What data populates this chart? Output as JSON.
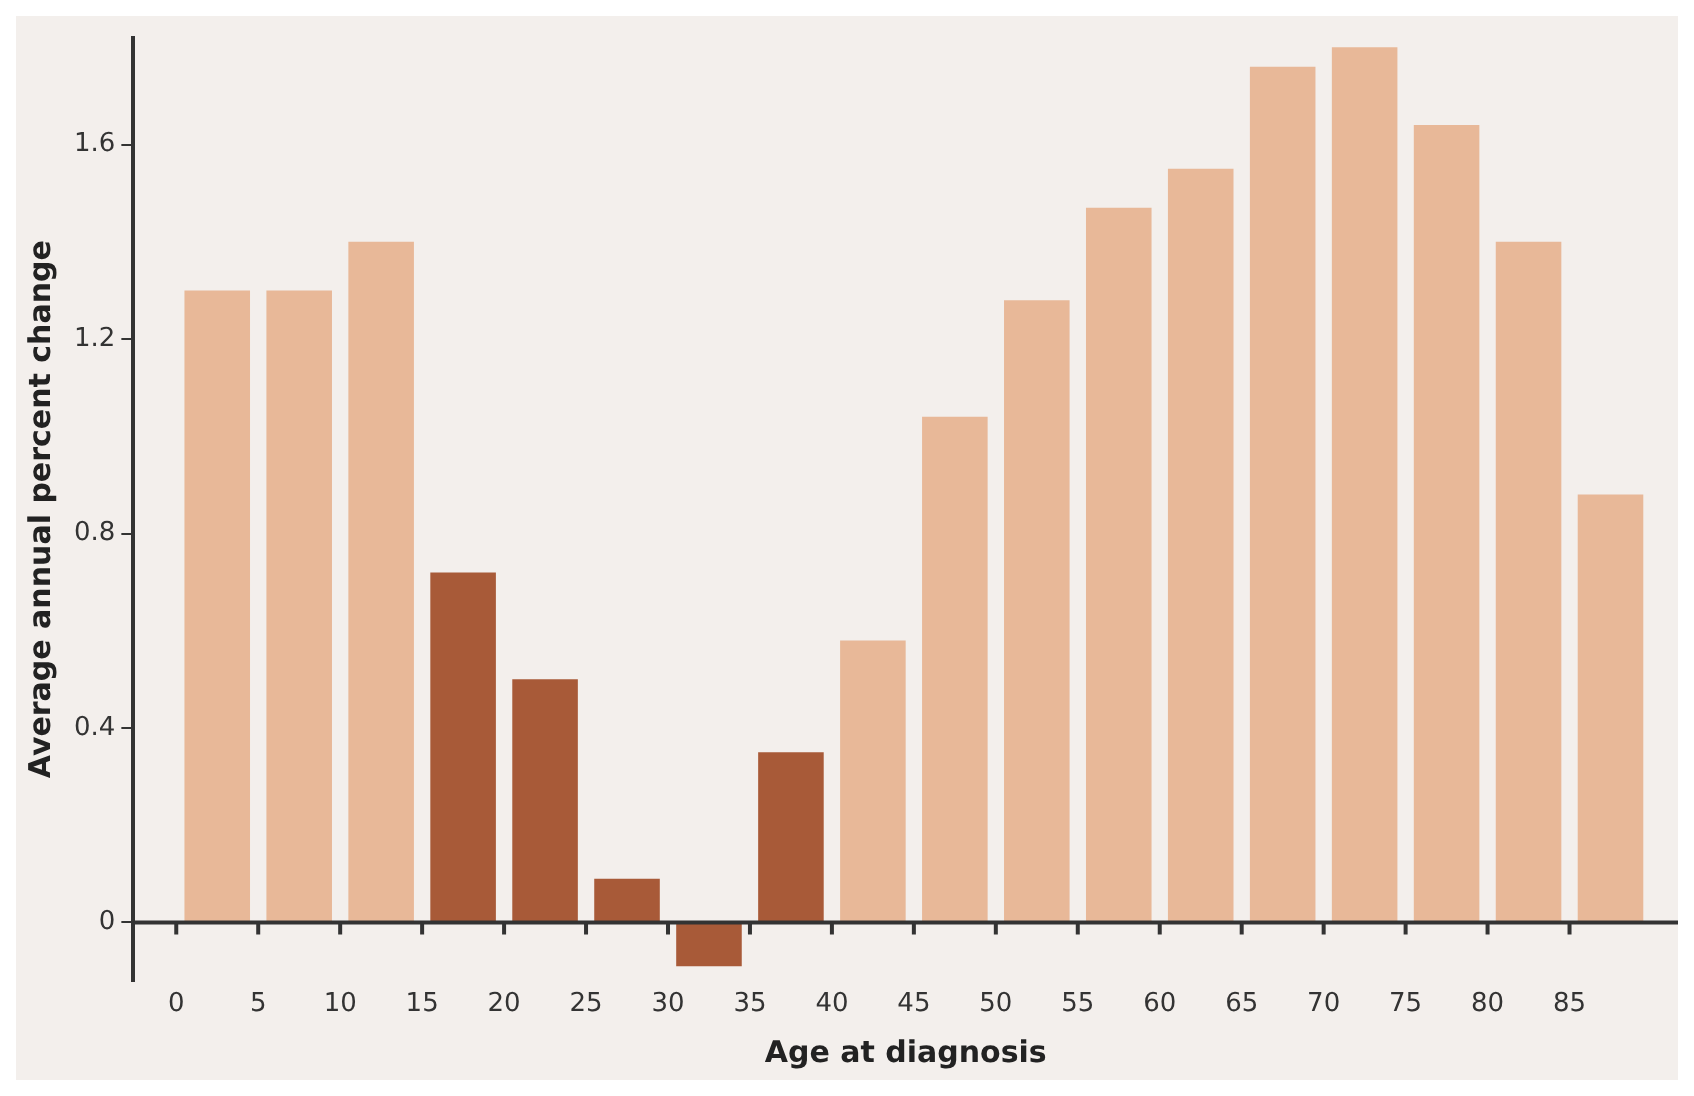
{
  "chart_data": {
    "type": "bar",
    "xlabel": "Age at diagnosis",
    "ylabel": "Average annual percent change",
    "x": [
      2.5,
      7.5,
      12.5,
      17.5,
      22.5,
      27.5,
      32.5,
      37.5,
      42.5,
      47.5,
      52.5,
      57.5,
      62.5,
      67.5,
      72.5,
      77.5,
      82.5,
      87.5
    ],
    "values": [
      1.3,
      1.3,
      1.4,
      0.72,
      0.5,
      0.09,
      -0.09,
      0.35,
      0.58,
      1.04,
      1.28,
      1.47,
      1.55,
      1.76,
      1.8,
      1.64,
      1.4,
      0.88
    ],
    "colors": [
      "#e8b898",
      "#e8b898",
      "#e8b898",
      "#a85a38",
      "#a85a38",
      "#a85a38",
      "#a85a38",
      "#a85a38",
      "#e8b898",
      "#e8b898",
      "#e8b898",
      "#e8b898",
      "#e8b898",
      "#e8b898",
      "#e8b898",
      "#e8b898",
      "#e8b898",
      "#e8b898"
    ],
    "xlim": [
      0,
      89
    ],
    "xticks": [
      0,
      5,
      10,
      15,
      20,
      25,
      30,
      35,
      40,
      45,
      50,
      55,
      60,
      65,
      70,
      75,
      80,
      85
    ],
    "ylim": [
      -0.12,
      1.82
    ],
    "yticks": [
      0,
      0.4,
      0.8,
      1.2,
      1.6
    ],
    "grid": false,
    "legend": false
  }
}
